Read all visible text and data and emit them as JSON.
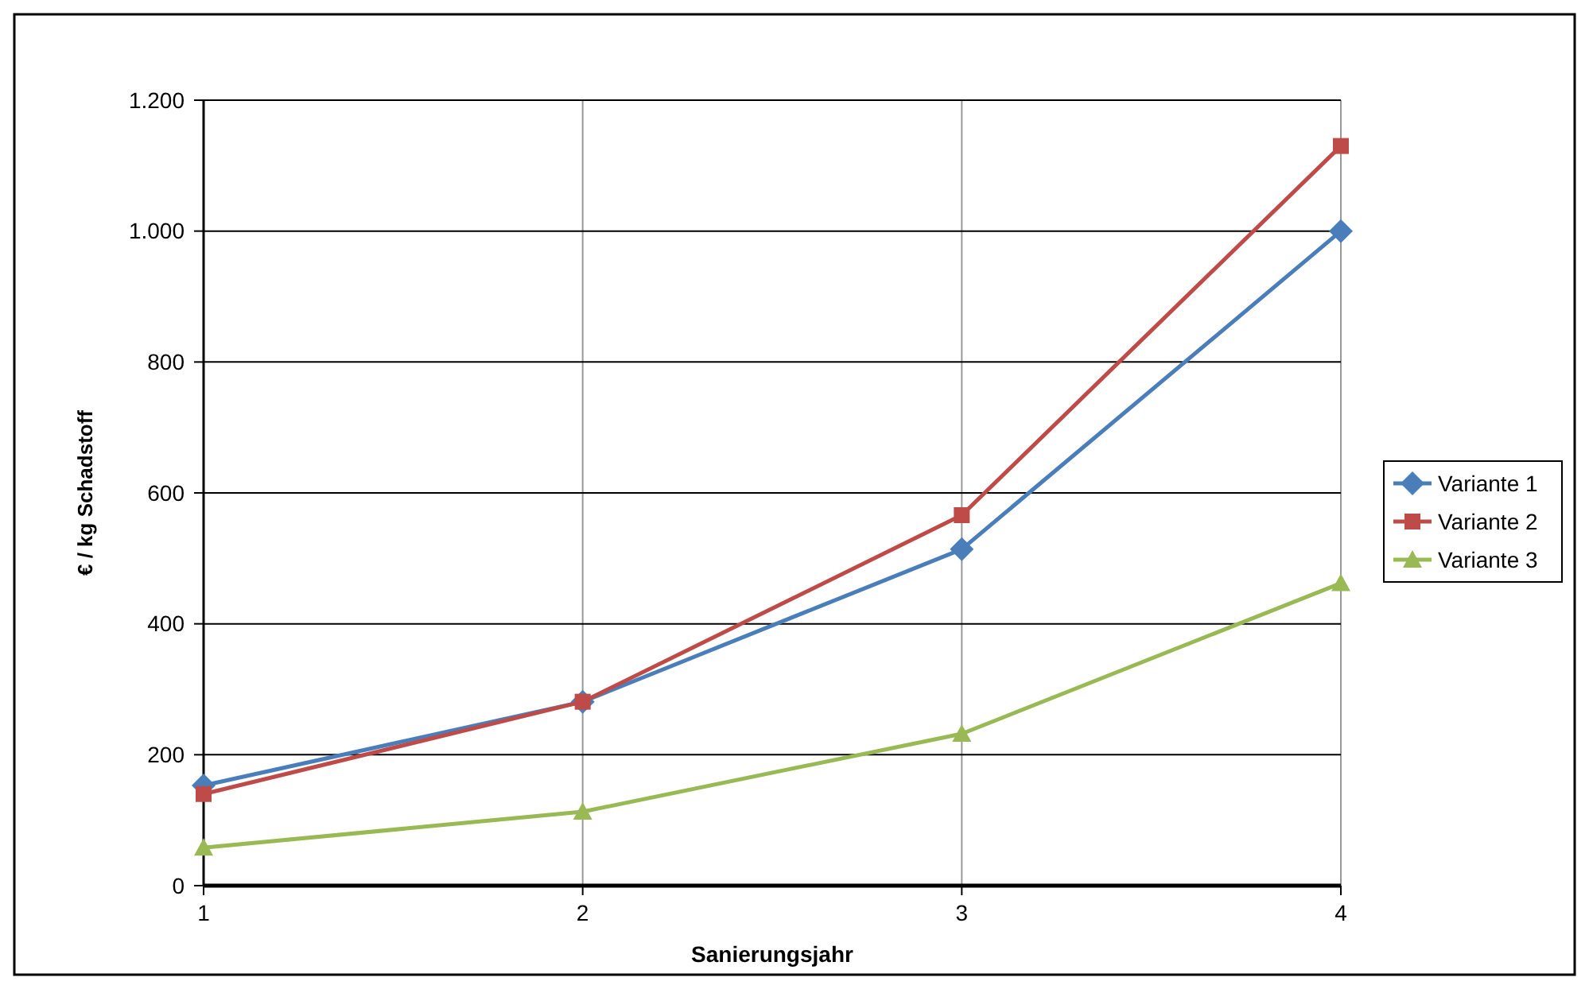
{
  "chart_data": {
    "type": "line",
    "xlabel": "Sanierungsjahr",
    "ylabel": "€ / kg  Schadstoff",
    "x": [
      1,
      2,
      3,
      4
    ],
    "xlim": [
      1,
      4
    ],
    "xticks": [
      1,
      2,
      3,
      4
    ],
    "ylim": [
      0,
      1200
    ],
    "yticks": [
      0,
      200,
      400,
      600,
      800,
      {
        "value": 1000,
        "label": "1.000"
      },
      {
        "value": 1200,
        "label": "1.200"
      }
    ],
    "grid": true,
    "legend": "right",
    "series": [
      {
        "name": "Variante 1",
        "color": "#4a7ebb",
        "values": [
          153,
          281,
          514,
          1000
        ],
        "marker": "diamond"
      },
      {
        "name": "Variante 2",
        "color": "#be4b48",
        "values": [
          140,
          281,
          566,
          1130
        ],
        "marker": "square"
      },
      {
        "name": "Variante 3",
        "color": "#98b954",
        "values": [
          58,
          113,
          232,
          462
        ],
        "marker": "triangle"
      }
    ]
  }
}
